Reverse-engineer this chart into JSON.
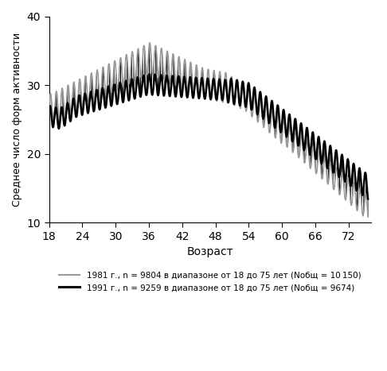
{
  "xlabel": "Возраст",
  "ylabel": "Среднее число форм активности",
  "xlim": [
    18,
    76
  ],
  "ylim": [
    10,
    40
  ],
  "xticks": [
    18,
    24,
    30,
    36,
    42,
    48,
    54,
    60,
    66,
    72
  ],
  "yticks": [
    10,
    20,
    30,
    40
  ],
  "color_1981": "#999999",
  "color_1991": "#000000",
  "legend_1981": "1981 г., n = 9804 в диапазоне от 18 до 75 лет (Nобщ = 10 150)",
  "legend_1991": "1991 г., n = 9259 в диапазоне от 18 до 75 лет (Nобщ = 9674)"
}
